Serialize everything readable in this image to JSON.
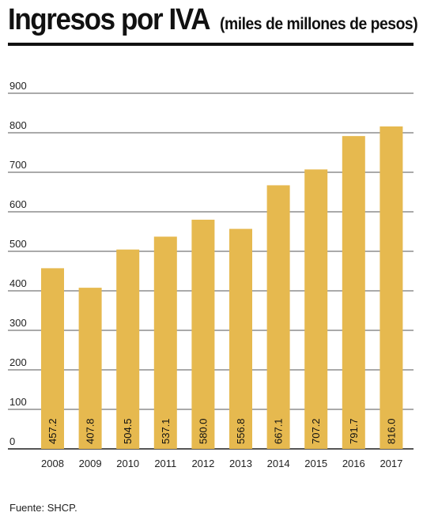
{
  "header": {
    "title": "Ingresos por IVA",
    "subtitle": "(miles de millones de pesos)"
  },
  "source": "Fuente: SHCP.",
  "colors": {
    "bar": "#e6b94f",
    "grid": "#555555",
    "text": "#222222"
  },
  "chart_data": {
    "type": "bar",
    "title": "Ingresos por IVA",
    "subtitle": "(miles de millones de pesos)",
    "categories": [
      "2008",
      "2009",
      "2010",
      "2011",
      "2012",
      "2013",
      "2014",
      "2015",
      "2016",
      "2017"
    ],
    "values": [
      457.2,
      407.8,
      504.5,
      537.1,
      580.0,
      556.8,
      667.1,
      707.2,
      791.7,
      816.0
    ],
    "value_labels": [
      "457.2",
      "407.8",
      "504.5",
      "537.1",
      "580.0",
      "556.8",
      "667.1",
      "707.2",
      "791.7",
      "816.0"
    ],
    "yticks": [
      "0",
      "100",
      "200",
      "300",
      "400",
      "500",
      "600",
      "700",
      "800",
      "900"
    ],
    "ylim": [
      0,
      900
    ],
    "grid": true,
    "xlabel": "",
    "ylabel": ""
  }
}
